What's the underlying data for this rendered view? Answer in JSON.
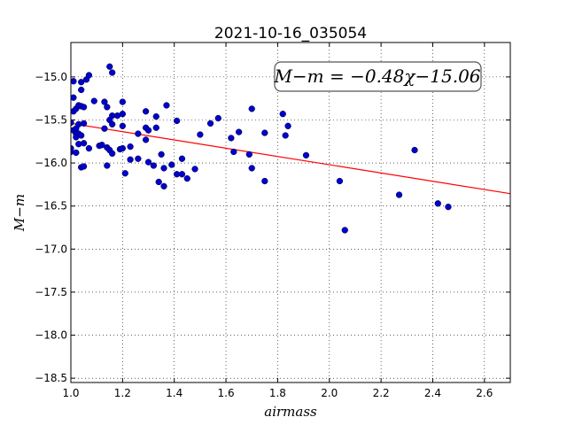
{
  "chart_data": {
    "type": "scatter",
    "title": "2021-10-16_035054",
    "xlabel": "airmass",
    "ylabel": "M−m",
    "xlim": [
      1.0,
      2.7
    ],
    "ylim": [
      -18.55,
      -14.6
    ],
    "xticks": [
      1.0,
      1.2,
      1.4,
      1.6,
      1.8,
      2.0,
      2.2,
      2.4,
      2.6
    ],
    "xtick_labels": [
      "1.0",
      "1.2",
      "1.4",
      "1.6",
      "1.8",
      "2.0",
      "2.2",
      "2.4",
      "2.6"
    ],
    "yticks": [
      -15.0,
      -15.5,
      -16.0,
      -16.5,
      -17.0,
      -17.5,
      -18.0,
      -18.5
    ],
    "ytick_labels": [
      "−15.0",
      "−15.5",
      "−16.0",
      "−16.5",
      "−17.0",
      "−17.5",
      "−18.0",
      "−18.5"
    ],
    "grid": true,
    "grid_style": "dotted",
    "annotation": "M−m = −0.48χ−15.06",
    "annotation_placement": "top-right",
    "fit": {
      "slope": -0.48,
      "intercept": -15.06,
      "color": "#ff0000"
    },
    "point_color": "#0000cc",
    "points": [
      [
        1.0,
        -15.83
      ],
      [
        1.0,
        -15.87
      ],
      [
        1.0,
        -15.53
      ],
      [
        1.01,
        -15.4
      ],
      [
        1.01,
        -15.24
      ],
      [
        1.01,
        -15.05
      ],
      [
        1.01,
        -15.62
      ],
      [
        1.02,
        -15.6
      ],
      [
        1.02,
        -15.66
      ],
      [
        1.02,
        -15.7
      ],
      [
        1.02,
        -15.88
      ],
      [
        1.02,
        -15.37
      ],
      [
        1.03,
        -15.55
      ],
      [
        1.03,
        -15.66
      ],
      [
        1.03,
        -15.33
      ],
      [
        1.03,
        -15.78
      ],
      [
        1.04,
        -15.06
      ],
      [
        1.04,
        -15.15
      ],
      [
        1.04,
        -15.34
      ],
      [
        1.04,
        -15.68
      ],
      [
        1.04,
        -16.05
      ],
      [
        1.05,
        -15.35
      ],
      [
        1.05,
        -15.54
      ],
      [
        1.05,
        -15.77
      ],
      [
        1.05,
        -16.04
      ],
      [
        1.06,
        -15.03
      ],
      [
        1.07,
        -15.83
      ],
      [
        1.07,
        -14.98
      ],
      [
        1.09,
        -15.28
      ],
      [
        1.11,
        -15.8
      ],
      [
        1.12,
        -15.79
      ],
      [
        1.13,
        -15.29
      ],
      [
        1.13,
        -15.6
      ],
      [
        1.14,
        -15.35
      ],
      [
        1.14,
        -16.03
      ],
      [
        1.14,
        -15.82
      ],
      [
        1.15,
        -15.5
      ],
      [
        1.15,
        -15.85
      ],
      [
        1.15,
        -14.88
      ],
      [
        1.16,
        -14.95
      ],
      [
        1.16,
        -15.45
      ],
      [
        1.16,
        -15.55
      ],
      [
        1.16,
        -15.89
      ],
      [
        1.18,
        -15.45
      ],
      [
        1.19,
        -15.84
      ],
      [
        1.2,
        -15.29
      ],
      [
        1.2,
        -15.43
      ],
      [
        1.2,
        -15.57
      ],
      [
        1.2,
        -15.83
      ],
      [
        1.21,
        -16.12
      ],
      [
        1.23,
        -15.96
      ],
      [
        1.23,
        -15.81
      ],
      [
        1.26,
        -15.66
      ],
      [
        1.26,
        -15.95
      ],
      [
        1.29,
        -15.4
      ],
      [
        1.29,
        -15.59
      ],
      [
        1.29,
        -15.73
      ],
      [
        1.3,
        -15.62
      ],
      [
        1.3,
        -15.99
      ],
      [
        1.32,
        -16.03
      ],
      [
        1.33,
        -15.46
      ],
      [
        1.33,
        -15.59
      ],
      [
        1.34,
        -16.22
      ],
      [
        1.35,
        -15.9
      ],
      [
        1.36,
        -16.06
      ],
      [
        1.36,
        -16.27
      ],
      [
        1.37,
        -15.33
      ],
      [
        1.39,
        -16.02
      ],
      [
        1.41,
        -15.51
      ],
      [
        1.41,
        -16.13
      ],
      [
        1.43,
        -15.95
      ],
      [
        1.43,
        -16.13
      ],
      [
        1.45,
        -16.18
      ],
      [
        1.48,
        -16.07
      ],
      [
        1.5,
        -15.67
      ],
      [
        1.54,
        -15.54
      ],
      [
        1.57,
        -15.48
      ],
      [
        1.62,
        -15.71
      ],
      [
        1.63,
        -15.87
      ],
      [
        1.65,
        -15.64
      ],
      [
        1.69,
        -15.9
      ],
      [
        1.7,
        -15.37
      ],
      [
        1.7,
        -16.06
      ],
      [
        1.75,
        -15.65
      ],
      [
        1.75,
        -16.21
      ],
      [
        1.82,
        -15.43
      ],
      [
        1.83,
        -15.68
      ],
      [
        1.84,
        -15.57
      ],
      [
        1.91,
        -15.91
      ],
      [
        2.04,
        -16.21
      ],
      [
        2.06,
        -16.78
      ],
      [
        2.27,
        -16.37
      ],
      [
        2.33,
        -15.85
      ],
      [
        2.42,
        -16.47
      ],
      [
        2.46,
        -16.51
      ]
    ]
  }
}
